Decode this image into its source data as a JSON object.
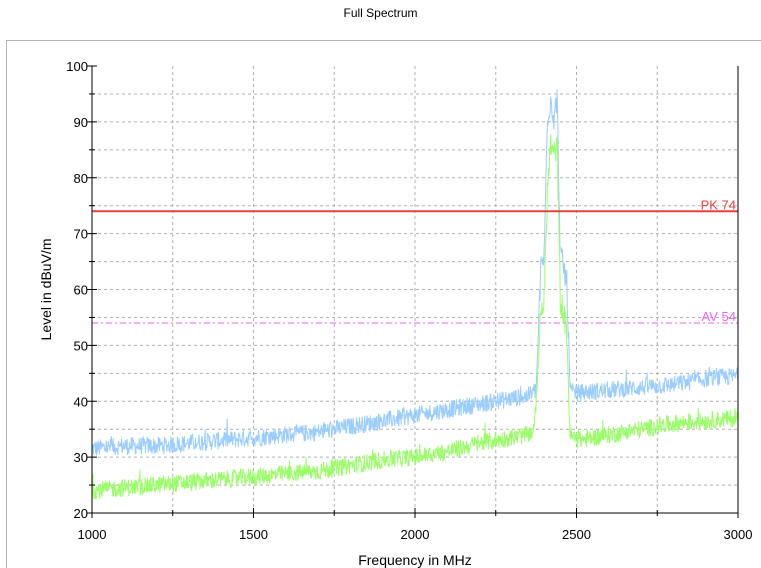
{
  "chart_data": {
    "type": "line",
    "title": "Full Spectrum",
    "xlabel": "Frequency in MHz",
    "ylabel": "Level in dBuV/m",
    "xlim": [
      1000,
      3000
    ],
    "ylim": [
      20,
      100
    ],
    "x_ticks": [
      "1000",
      "1500",
      "2000",
      "2500",
      "3000"
    ],
    "y_ticks": [
      "20",
      "30",
      "40",
      "50",
      "60",
      "70",
      "80",
      "90",
      "100"
    ],
    "grid": true,
    "series": [
      {
        "color": "#99ccff",
        "x": [
          1000,
          1100,
          1200,
          1300,
          1400,
          1500,
          1600,
          1700,
          1800,
          1900,
          2000,
          2100,
          2200,
          2300,
          2350,
          2375,
          2390,
          2400,
          2410,
          2420,
          2430,
          2440,
          2450,
          2460,
          2470,
          2480,
          2490,
          2500,
          2600,
          2700,
          2800,
          2900,
          3000
        ],
        "y": [
          31.5,
          32,
          32,
          32.5,
          33,
          33.5,
          34,
          34.5,
          35.5,
          36.5,
          37.5,
          38.5,
          39.5,
          40.5,
          41,
          42,
          64,
          66,
          91,
          94,
          91,
          94,
          66,
          64,
          61,
          42,
          41.5,
          41.5,
          42,
          42.5,
          43,
          44,
          44.5
        ]
      },
      {
        "color": "#99ff66",
        "x": [
          1000,
          1100,
          1200,
          1300,
          1400,
          1500,
          1600,
          1700,
          1800,
          1900,
          2000,
          2100,
          2200,
          2300,
          2350,
          2370,
          2390,
          2400,
          2410,
          2420,
          2430,
          2440,
          2450,
          2460,
          2470,
          2480,
          2500,
          2600,
          2700,
          2800,
          2900,
          3000
        ],
        "y": [
          24,
          24.5,
          25,
          25.5,
          26,
          26.5,
          27,
          27.5,
          28.5,
          29.5,
          30,
          31,
          32.5,
          33.5,
          34,
          35,
          56,
          58,
          78,
          86,
          84,
          86,
          58,
          56,
          52,
          34,
          33,
          34,
          35,
          36,
          36.5,
          37
        ]
      }
    ],
    "limit_lines": [
      {
        "label": "PK 74",
        "value": 74,
        "color": "#e84040",
        "style": "solid"
      },
      {
        "label": "AV 54",
        "value": 54,
        "color": "#ee66ee",
        "style": "dashed"
      }
    ]
  }
}
